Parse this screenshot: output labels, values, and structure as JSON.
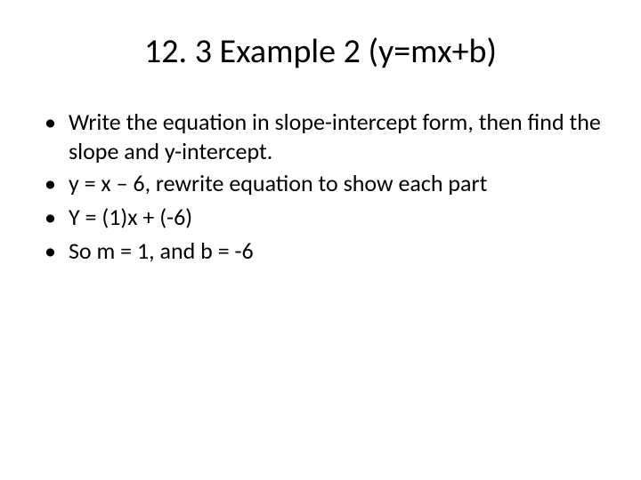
{
  "slide": {
    "title": "12. 3 Example 2 (y=mx+b)",
    "bullets": [
      "Write the equation in slope-intercept form, then find the slope and y-intercept.",
      "y = x – 6, rewrite equation to show each part",
      "Y = (1)x + (-6)",
      "So m = 1, and b = -6"
    ],
    "title_fontsize": 38,
    "body_fontsize": 26,
    "text_color": "#000000",
    "background_color": "#ffffff",
    "font_family": "Calibri"
  }
}
